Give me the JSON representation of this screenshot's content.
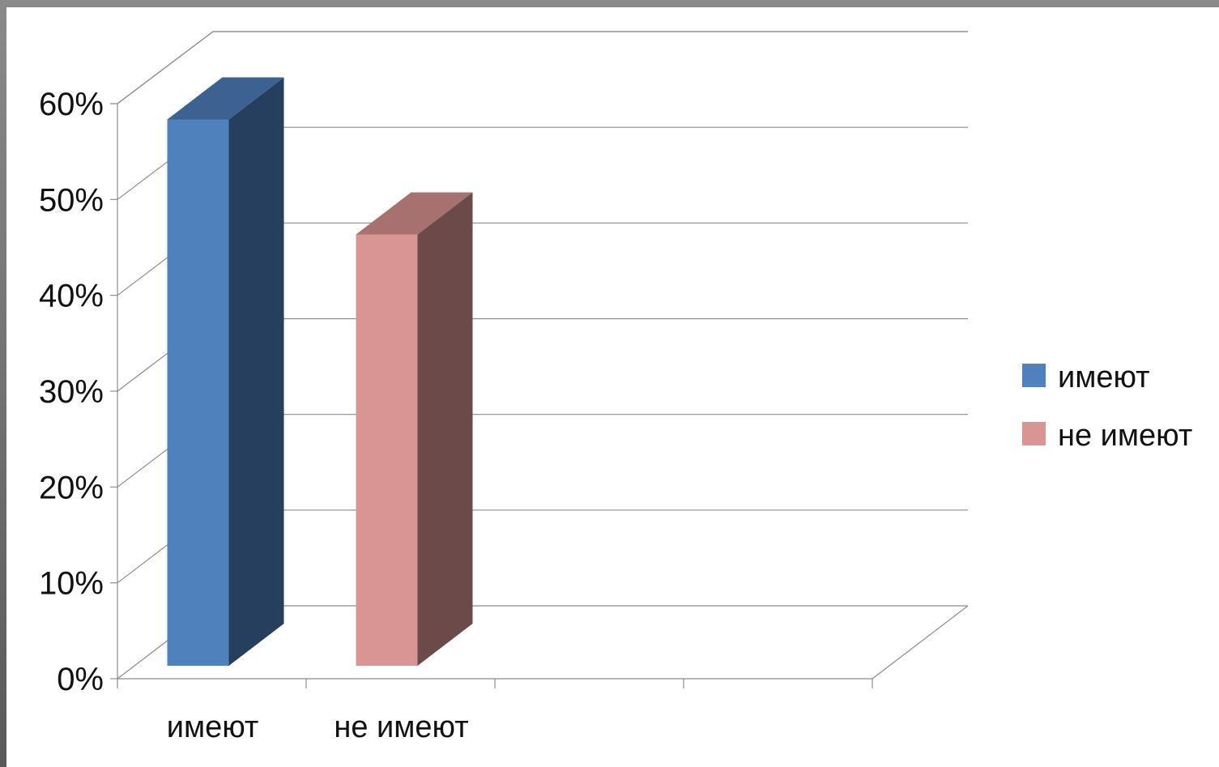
{
  "chart_data": {
    "type": "bar",
    "categories": [
      "имеют",
      "не имеют"
    ],
    "series": [
      {
        "name": "имеют",
        "values": [
          57,
          null
        ]
      },
      {
        "name": "не имеют",
        "values": [
          null,
          45
        ]
      }
    ],
    "y_ticks": [
      "0%",
      "10%",
      "20%",
      "30%",
      "40%",
      "50%",
      "60%"
    ],
    "ylim": [
      0,
      60
    ],
    "y_unit": "%",
    "legend_placement": "right",
    "grid": true,
    "colors": {
      "series1_front": "#4f81bd",
      "series1_side": "#263f5e",
      "series1_top": "#3b6291",
      "series2_front": "#d99594",
      "series2_side": "#6d4a4a",
      "series2_top": "#a6716f"
    }
  }
}
